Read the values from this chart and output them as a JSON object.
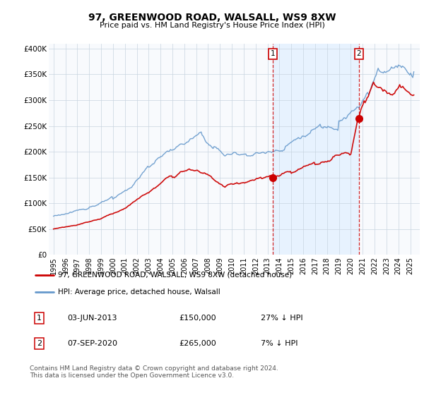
{
  "title": "97, GREENWOOD ROAD, WALSALL, WS9 8XW",
  "subtitle": "Price paid vs. HM Land Registry's House Price Index (HPI)",
  "legend_line1": "97, GREENWOOD ROAD, WALSALL, WS9 8XW (detached house)",
  "legend_line2": "HPI: Average price, detached house, Walsall",
  "annotation1_label": "1",
  "annotation1_date": "03-JUN-2013",
  "annotation1_price": "£150,000",
  "annotation1_hpi": "27% ↓ HPI",
  "annotation1_year": 2013.42,
  "annotation1_value": 150000,
  "annotation2_label": "2",
  "annotation2_date": "07-SEP-2020",
  "annotation2_price": "£265,000",
  "annotation2_hpi": "7% ↓ HPI",
  "annotation2_year": 2020.67,
  "annotation2_value": 265000,
  "footer": "Contains HM Land Registry data © Crown copyright and database right 2024.\nThis data is licensed under the Open Government Licence v3.0.",
  "red_color": "#cc0000",
  "blue_color": "#6699cc",
  "shade_color": "#ddeeff",
  "plot_bg": "#f8fafd",
  "ylim": [
    0,
    400000
  ],
  "yticks": [
    0,
    50000,
    100000,
    150000,
    200000,
    250000,
    300000,
    350000,
    400000
  ],
  "ytick_labels": [
    "£0",
    "£50K",
    "£100K",
    "£150K",
    "£200K",
    "£250K",
    "£300K",
    "£350K",
    "£400K"
  ]
}
